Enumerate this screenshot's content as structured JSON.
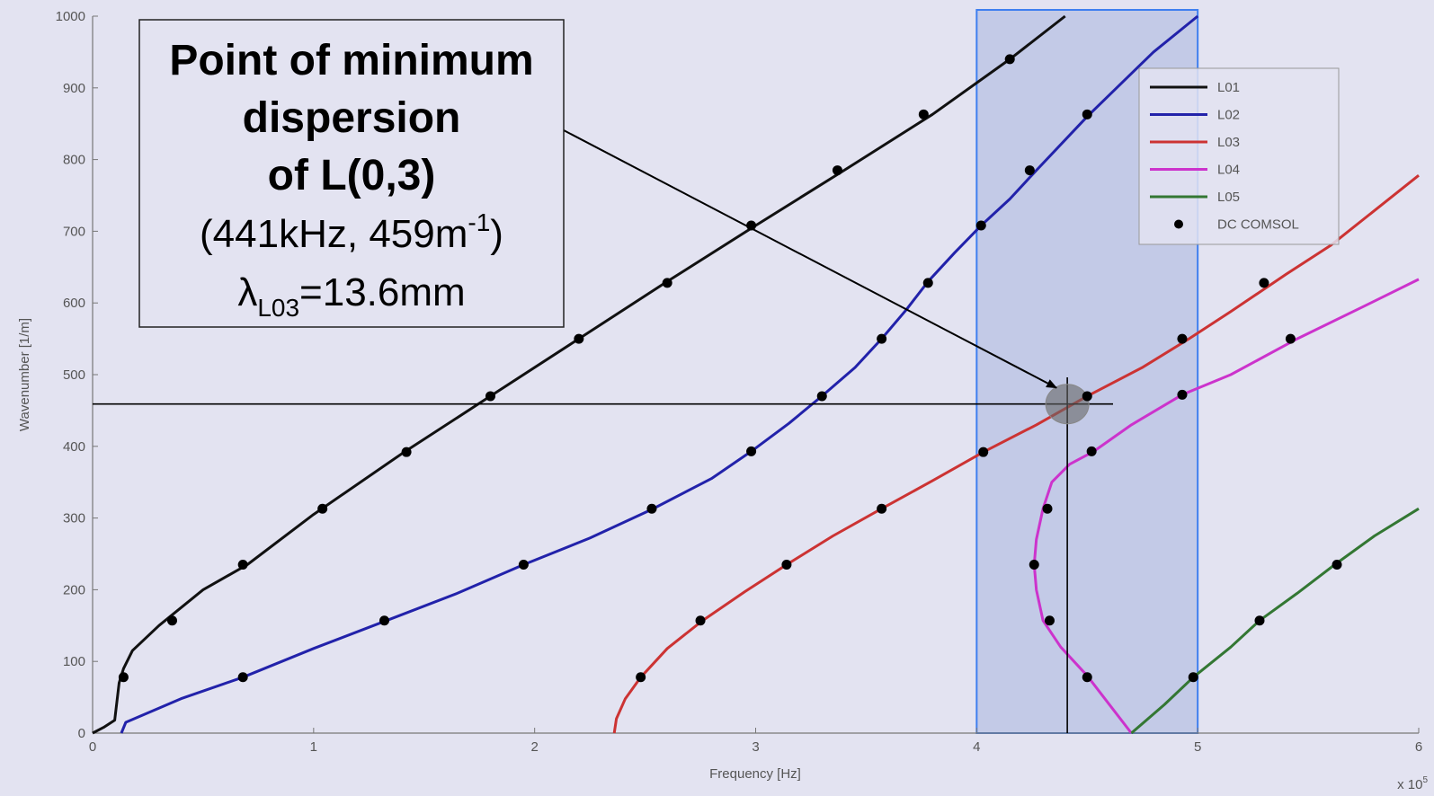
{
  "chart_data": {
    "type": "line",
    "title": "",
    "xlabel": "Frequency [Hz]",
    "ylabel": "Wavenumber [1/m]",
    "x_multiplier": "x 10",
    "x_multiplier_exp": "5",
    "xlim": [
      0,
      6
    ],
    "ylim": [
      0,
      1000
    ],
    "xticks": [
      "0",
      "1",
      "2",
      "3",
      "4",
      "5",
      "6"
    ],
    "yticks": [
      "0",
      "100",
      "200",
      "300",
      "400",
      "500",
      "600",
      "700",
      "800",
      "900",
      "1000"
    ],
    "grid": false,
    "legend_position": "top-right",
    "highlight_region_x": [
      4.0,
      5.0
    ],
    "reference_lines": {
      "x": 4.41,
      "y": 459
    },
    "annotation": {
      "line1": "Point of minimum",
      "line2": "dispersion",
      "line3": "of L(0,3)",
      "line4_a": "(441kHz, 459m",
      "line4_sup": "-1",
      "line4_b": ")",
      "line5_a": "λ",
      "line5_sub": "L03",
      "line5_b": "=13.6mm",
      "target": {
        "x": 4.41,
        "y": 459
      }
    },
    "series": [
      {
        "name": "L01",
        "color": "#111111",
        "x": [
          0.0,
          0.05,
          0.1,
          0.12,
          0.14,
          0.18,
          0.3,
          0.5,
          0.7,
          1.0,
          1.4,
          1.8,
          2.2,
          2.6,
          3.0,
          3.4,
          3.8,
          4.15,
          4.4
        ],
        "y": [
          0,
          8,
          18,
          70,
          90,
          115,
          150,
          200,
          235,
          305,
          390,
          470,
          550,
          630,
          708,
          785,
          863,
          940,
          1000
        ]
      },
      {
        "name": "L02",
        "color": "#2222aa",
        "x": [
          0.13,
          0.15,
          0.4,
          0.68,
          1.0,
          1.33,
          1.65,
          1.95,
          2.25,
          2.53,
          2.8,
          2.98,
          3.15,
          3.3,
          3.45,
          3.57,
          3.68,
          3.78,
          3.9,
          4.02,
          4.15,
          4.27,
          4.5,
          4.8,
          5.0
        ],
        "y": [
          0,
          15,
          48,
          78,
          118,
          157,
          195,
          235,
          272,
          312,
          355,
          393,
          432,
          470,
          510,
          550,
          590,
          630,
          670,
          708,
          745,
          785,
          860,
          950,
          1000
        ]
      },
      {
        "name": "L03",
        "color": "#cc3333",
        "x": [
          2.36,
          2.37,
          2.41,
          2.48,
          2.6,
          2.76,
          2.95,
          3.14,
          3.35,
          3.57,
          3.8,
          4.03,
          4.27,
          4.5,
          4.75,
          4.95,
          5.15,
          5.4,
          5.6,
          6.0
        ],
        "y": [
          0,
          20,
          48,
          78,
          118,
          157,
          197,
          235,
          275,
          313,
          352,
          392,
          430,
          470,
          510,
          548,
          588,
          640,
          680,
          778
        ]
      },
      {
        "name": "L04",
        "color": "#cc33cc",
        "x": [
          4.7,
          4.6,
          4.5,
          4.38,
          4.3,
          4.27,
          4.26,
          4.27,
          4.3,
          4.34,
          4.42,
          4.53,
          4.7,
          4.93,
          5.15,
          5.45,
          5.75,
          6.0
        ],
        "y": [
          0,
          40,
          80,
          120,
          157,
          200,
          235,
          270,
          313,
          350,
          375,
          393,
          430,
          472,
          500,
          550,
          595,
          633
        ]
      },
      {
        "name": "L05",
        "color": "#337733",
        "x": [
          4.7,
          4.85,
          4.98,
          5.15,
          5.28,
          5.45,
          5.62,
          5.8,
          6.0
        ],
        "y": [
          0,
          40,
          78,
          120,
          157,
          195,
          235,
          275,
          313
        ]
      },
      {
        "name": "DC COMSOL",
        "color": "#000000",
        "marker_only": true,
        "x": [
          0.14,
          0.36,
          0.68,
          1.04,
          1.42,
          1.8,
          2.2,
          2.6,
          2.98,
          3.37,
          3.76,
          4.15,
          0.68,
          1.32,
          1.95,
          2.53,
          2.98,
          3.3,
          3.57,
          3.78,
          4.02,
          4.24,
          4.5,
          2.48,
          2.75,
          3.14,
          3.57,
          4.03,
          4.5,
          4.93,
          5.3,
          4.5,
          4.33,
          4.26,
          4.32,
          4.52,
          4.93,
          5.42,
          4.98,
          5.28,
          5.63
        ],
        "y": [
          78,
          157,
          235,
          313,
          392,
          470,
          550,
          628,
          708,
          785,
          863,
          940,
          78,
          157,
          235,
          313,
          393,
          470,
          550,
          628,
          708,
          785,
          863,
          78,
          157,
          235,
          313,
          392,
          470,
          550,
          628,
          78,
          157,
          235,
          313,
          393,
          472,
          550,
          78,
          157,
          235
        ]
      }
    ]
  }
}
